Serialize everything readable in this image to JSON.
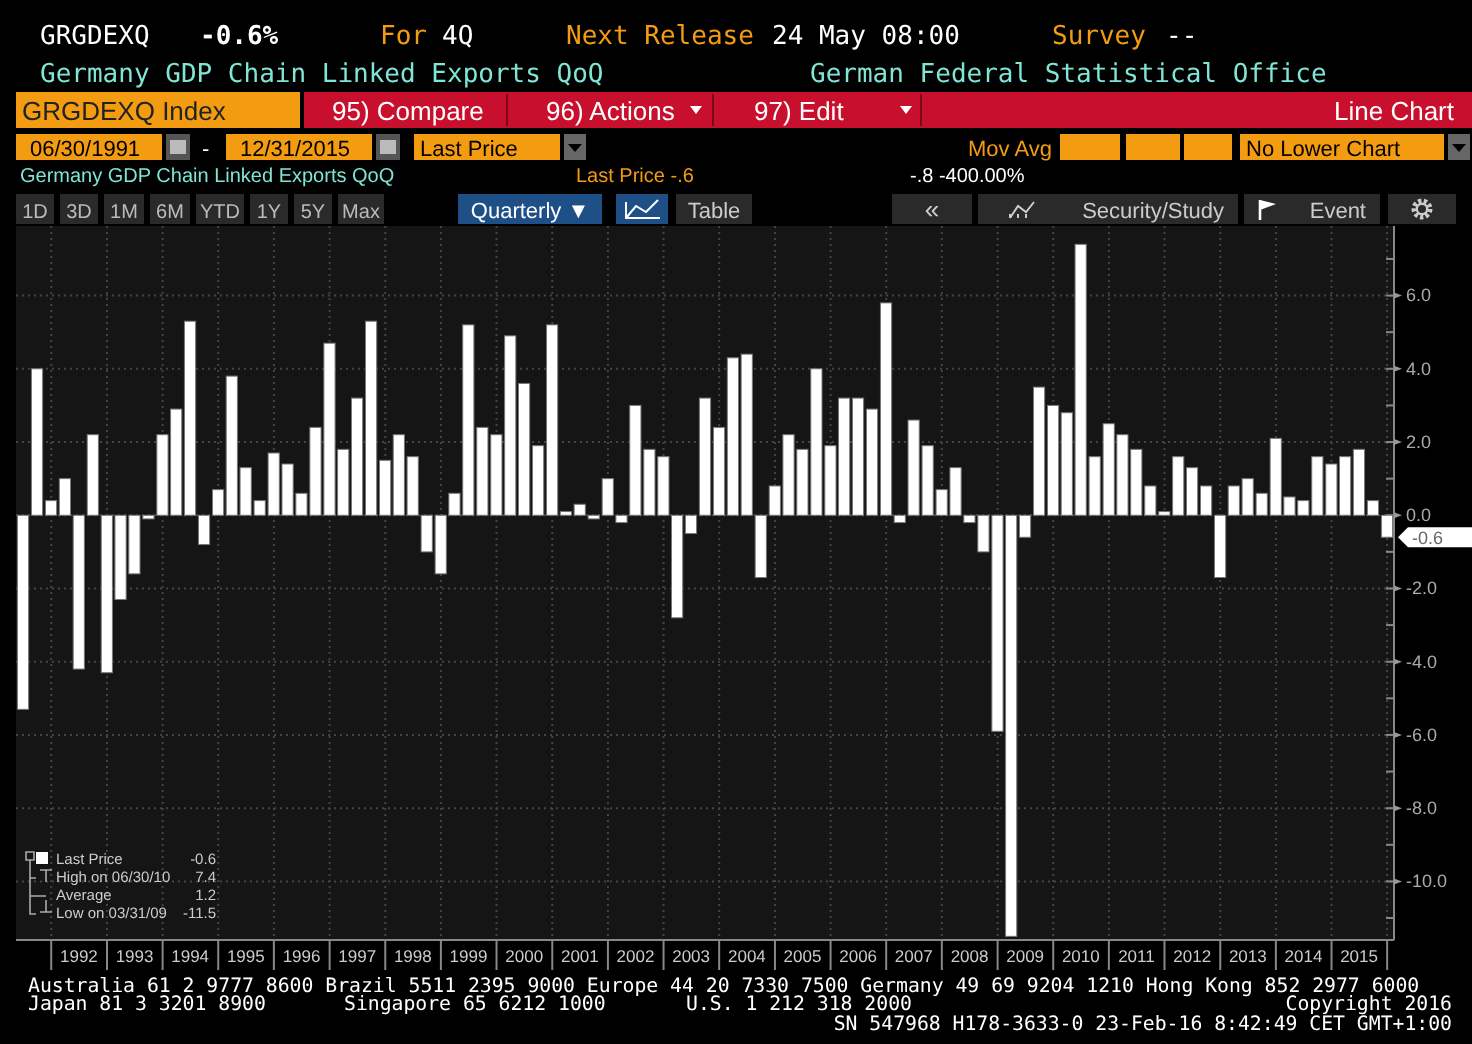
{
  "chart_data": {
    "type": "bar",
    "title": "Germany GDP Chain Linked Exports QoQ",
    "subtitle": "German Federal Statistical Office",
    "x": [
      "1991-06-30",
      "1991-09-30",
      "1991-12-31",
      "1992-03-31",
      "1992-06-30",
      "1992-09-30",
      "1992-12-31",
      "1993-03-31",
      "1993-06-30",
      "1993-09-30",
      "1993-12-31",
      "1994-03-31",
      "1994-06-30",
      "1994-09-30",
      "1994-12-31",
      "1995-03-31",
      "1995-06-30",
      "1995-09-30",
      "1995-12-31",
      "1996-03-31",
      "1996-06-30",
      "1996-09-30",
      "1996-12-31",
      "1997-03-31",
      "1997-06-30",
      "1997-09-30",
      "1997-12-31",
      "1998-03-31",
      "1998-06-30",
      "1998-09-30",
      "1998-12-31",
      "1999-03-31",
      "1999-06-30",
      "1999-09-30",
      "1999-12-31",
      "2000-03-31",
      "2000-06-30",
      "2000-09-30",
      "2000-12-31",
      "2001-03-31",
      "2001-06-30",
      "2001-09-30",
      "2001-12-31",
      "2002-03-31",
      "2002-06-30",
      "2002-09-30",
      "2002-12-31",
      "2003-03-31",
      "2003-06-30",
      "2003-09-30",
      "2003-12-31",
      "2004-03-31",
      "2004-06-30",
      "2004-09-30",
      "2004-12-31",
      "2005-03-31",
      "2005-06-30",
      "2005-09-30",
      "2005-12-31",
      "2006-03-31",
      "2006-06-30",
      "2006-09-30",
      "2006-12-31",
      "2007-03-31",
      "2007-06-30",
      "2007-09-30",
      "2007-12-31",
      "2008-03-31",
      "2008-06-30",
      "2008-09-30",
      "2008-12-31",
      "2009-03-31",
      "2009-06-30",
      "2009-09-30",
      "2009-12-31",
      "2010-03-31",
      "2010-06-30",
      "2010-09-30",
      "2010-12-31",
      "2011-03-31",
      "2011-06-30",
      "2011-09-30",
      "2011-12-31",
      "2012-03-31",
      "2012-06-30",
      "2012-09-30",
      "2012-12-31",
      "2013-03-31",
      "2013-06-30",
      "2013-09-30",
      "2013-12-31",
      "2014-03-31",
      "2014-06-30",
      "2014-09-30",
      "2014-12-31",
      "2015-03-31",
      "2015-06-30",
      "2015-09-30",
      "2015-12-31"
    ],
    "series": [
      {
        "name": "Last Price",
        "color": "#ffffff",
        "values": [
          -5.3,
          4.0,
          0.4,
          1.0,
          -4.2,
          2.2,
          -4.3,
          -2.3,
          -1.6,
          -0.1,
          2.2,
          2.9,
          5.3,
          -0.8,
          0.7,
          3.8,
          1.3,
          0.4,
          1.7,
          1.4,
          0.6,
          2.4,
          4.7,
          1.8,
          3.2,
          5.3,
          1.5,
          2.2,
          1.6,
          -1.0,
          -1.6,
          0.6,
          5.2,
          2.4,
          2.2,
          4.9,
          3.6,
          1.9,
          5.2,
          0.1,
          0.3,
          -0.1,
          1.0,
          -0.2,
          3.0,
          1.8,
          1.6,
          -2.8,
          -0.5,
          3.2,
          2.4,
          4.3,
          4.4,
          -1.7,
          0.8,
          2.2,
          1.8,
          4.0,
          1.9,
          3.2,
          3.2,
          2.9,
          5.8,
          -0.2,
          2.6,
          1.9,
          0.7,
          1.3,
          -0.2,
          -1.0,
          -5.9,
          -11.5,
          -0.6,
          3.5,
          3.0,
          2.8,
          7.4,
          1.6,
          2.5,
          2.2,
          1.8,
          0.8,
          0.1,
          1.6,
          1.3,
          0.8,
          -1.7,
          0.8,
          1.0,
          0.6,
          2.1,
          0.5,
          0.4,
          1.6,
          1.4,
          1.6,
          1.8,
          0.4,
          -0.6
        ]
      }
    ],
    "xlim": [
      "1991-05-15",
      "2016-02-15"
    ],
    "xticks": [
      {
        "value": "1992-01-01",
        "label": null
      },
      {
        "value": "1992-07-01",
        "label": "1992"
      },
      {
        "value": "1993-01-01",
        "label": null
      },
      {
        "value": "1993-07-01",
        "label": "1993"
      },
      {
        "value": "1994-01-01",
        "label": null
      },
      {
        "value": "1994-07-01",
        "label": "1994"
      },
      {
        "value": "1995-01-01",
        "label": null
      },
      {
        "value": "1995-07-01",
        "label": "1995"
      },
      {
        "value": "1996-01-01",
        "label": null
      },
      {
        "value": "1996-07-01",
        "label": "1996"
      },
      {
        "value": "1997-01-01",
        "label": null
      },
      {
        "value": "1997-07-01",
        "label": "1997"
      },
      {
        "value": "1998-01-01",
        "label": null
      },
      {
        "value": "1998-07-01",
        "label": "1998"
      },
      {
        "value": "1999-01-01",
        "label": null
      },
      {
        "value": "1999-07-01",
        "label": "1999"
      },
      {
        "value": "2000-01-01",
        "label": null
      },
      {
        "value": "2000-07-01",
        "label": "2000"
      },
      {
        "value": "2001-01-01",
        "label": null
      },
      {
        "value": "2001-07-01",
        "label": "2001"
      },
      {
        "value": "2002-01-01",
        "label": null
      },
      {
        "value": "2002-07-01",
        "label": "2002"
      },
      {
        "value": "2003-01-01",
        "label": null
      },
      {
        "value": "2003-07-01",
        "label": "2003"
      },
      {
        "value": "2004-01-01",
        "label": null
      },
      {
        "value": "2004-07-01",
        "label": "2004"
      },
      {
        "value": "2005-01-01",
        "label": null
      },
      {
        "value": "2005-07-01",
        "label": "2005"
      },
      {
        "value": "2006-01-01",
        "label": null
      },
      {
        "value": "2006-07-01",
        "label": "2006"
      },
      {
        "value": "2007-01-01",
        "label": null
      },
      {
        "value": "2007-07-01",
        "label": "2007"
      },
      {
        "value": "2008-01-01",
        "label": null
      },
      {
        "value": "2008-07-01",
        "label": "2008"
      },
      {
        "value": "2009-01-01",
        "label": null
      },
      {
        "value": "2009-07-01",
        "label": "2009"
      },
      {
        "value": "2010-01-01",
        "label": null
      },
      {
        "value": "2010-07-01",
        "label": "2010"
      },
      {
        "value": "2011-01-01",
        "label": null
      },
      {
        "value": "2011-07-01",
        "label": "2011"
      },
      {
        "value": "2012-01-01",
        "label": null
      },
      {
        "value": "2012-07-01",
        "label": "2012"
      },
      {
        "value": "2013-01-01",
        "label": null
      },
      {
        "value": "2013-07-01",
        "label": "2013"
      },
      {
        "value": "2014-01-01",
        "label": null
      },
      {
        "value": "2014-07-01",
        "label": "2014"
      },
      {
        "value": "2015-01-01",
        "label": null
      },
      {
        "value": "2015-07-01",
        "label": "2015"
      },
      {
        "value": "2016-01-01",
        "label": null
      }
    ],
    "ylim": [
      -11.6,
      7.9
    ],
    "yticks": [
      {
        "value": -11,
        "label": null
      },
      {
        "value": -10,
        "label": "-10.0"
      },
      {
        "value": -9,
        "label": null
      },
      {
        "value": -8,
        "label": "-8.0"
      },
      {
        "value": -7,
        "label": null
      },
      {
        "value": -6,
        "label": "-6.0"
      },
      {
        "value": -5,
        "label": null
      },
      {
        "value": -4,
        "label": "-4.0"
      },
      {
        "value": -3,
        "label": null
      },
      {
        "value": -2,
        "label": "-2.0"
      },
      {
        "value": -1,
        "label": null
      },
      {
        "value": 0,
        "label": "0.0"
      },
      {
        "value": 1,
        "label": null
      },
      {
        "value": 2,
        "label": "2.0"
      },
      {
        "value": 3,
        "label": null
      },
      {
        "value": 4,
        "label": "4.0"
      },
      {
        "value": 5,
        "label": null
      },
      {
        "value": 6,
        "label": "6.0"
      },
      {
        "value": 7,
        "label": null
      }
    ],
    "grid": true,
    "legend": "bottom left",
    "annotations": [
      "GRGDEXQ",
      "-0.6%",
      "For",
      "4Q",
      "Next Release",
      "24 May 08:00",
      "Survey",
      "--",
      "GRGDEXQ Index",
      "95) Compare",
      "96) Actions",
      "97) Edit",
      "Line Chart",
      "06/30/1991",
      "-",
      "12/31/2015",
      "Last Price",
      "Mov Avg",
      "No Lower Chart",
      "Germany GDP Chain Linked Exports QoQ",
      "Last Price -.6",
      "-.8 -400.00%",
      "1D",
      "3D",
      "1M",
      "6M",
      "YTD",
      "1Y",
      "5Y",
      "Max",
      "Quarterly ▼",
      "Table",
      "«",
      "Security/Study",
      "Event",
      "-0.6",
      "High on 06/30/10",
      "7.4",
      "Average",
      "1.2",
      "Low on 03/31/09",
      "-11.5",
      "Australia 61 2 9777 8600 Brazil 5511 2395 9000 Europe 44 20 7330 7500 Germany 49 69 9204 1210 Hong Kong 852 2977 6000",
      "Japan 81 3 3201 8900",
      "Singapore 65 6212 1000",
      "U.S. 1 212 318 2000",
      "Copyright 2016",
      "SN 547968 H178-3633-0 23-Feb-16  8:42:49 CET  GMT+1:00",
      "-0.6"
    ]
  }
}
